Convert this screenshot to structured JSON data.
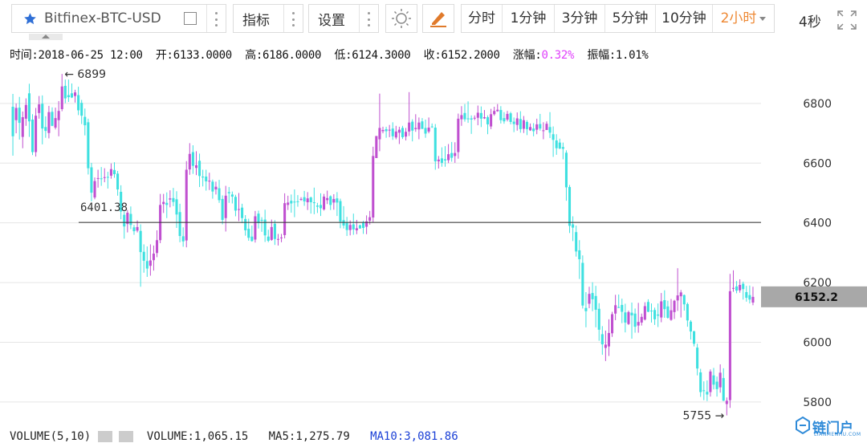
{
  "toolbar": {
    "symbol": "Bitfinex-BTC-USD",
    "indicators_label": "指标",
    "settings_label": "设置",
    "timeframes": [
      {
        "label": "分时",
        "active": false
      },
      {
        "label": "1分钟",
        "active": false
      },
      {
        "label": "3分钟",
        "active": false
      },
      {
        "label": "5分钟",
        "active": false
      },
      {
        "label": "10分钟",
        "active": false
      },
      {
        "label": "2小时",
        "active": true
      }
    ],
    "refresh_label": "4秒"
  },
  "info": {
    "time": "时间:2018-06-25 12:00",
    "open": "开:6133.0000",
    "high": "高:6186.0000",
    "low": "低:6124.3000",
    "close": "收:6152.2000",
    "change_label": "涨幅:",
    "change_value": "0.32%",
    "amplitude": "振幅:1.01%"
  },
  "chart_data": {
    "type": "candlestick",
    "y_range": [
      5770,
      6910
    ],
    "y_ticks": [
      "6800",
      "6600",
      "6400",
      "6200",
      "6000",
      "5800"
    ],
    "y_tick_values": [
      6800,
      6600,
      6400,
      6200,
      6000,
      5800
    ],
    "reference_line": {
      "value": 6401.38,
      "label": "6401.38"
    },
    "current_price": {
      "value": 6152.2,
      "label": "6152.2"
    },
    "max_marker": {
      "value": 6899,
      "label": "6899"
    },
    "min_marker": {
      "value": 5755,
      "label": "5755"
    },
    "colors": {
      "up": "#c050d0",
      "down": "#3ee0e0",
      "grid": "#e5e5e5",
      "axis_text": "#333333",
      "price_box": "#a8a8a8"
    },
    "candles": [
      [
        6789,
        6690,
        6832,
        6625
      ],
      [
        6744,
        6785,
        6800,
        6700
      ],
      [
        6786,
        6735,
        6822,
        6679
      ],
      [
        6688,
        6754,
        6773,
        6650
      ],
      [
        6749,
        6795,
        6817,
        6725
      ],
      [
        6834,
        6740,
        6866,
        6688
      ],
      [
        6746,
        6637,
        6764,
        6627
      ],
      [
        6637,
        6759,
        6785,
        6622
      ],
      [
        6768,
        6797,
        6825,
        6749
      ],
      [
        6799,
        6716,
        6827,
        6663
      ],
      [
        6721,
        6708,
        6757,
        6685
      ],
      [
        6701,
        6771,
        6792,
        6683
      ],
      [
        6772,
        6725,
        6787,
        6724
      ],
      [
        6719,
        6751,
        6786,
        6713
      ],
      [
        6744,
        6775,
        6808,
        6690
      ],
      [
        6781,
        6857,
        6899,
        6774
      ],
      [
        6859,
        6817,
        6880,
        6801
      ],
      [
        6828,
        6821,
        6880,
        6805
      ],
      [
        6834,
        6820,
        6867,
        6818
      ],
      [
        6825,
        6837,
        6846,
        6803
      ],
      [
        6828,
        6777,
        6856,
        6761
      ],
      [
        6802,
        6759,
        6812,
        6731
      ],
      [
        6755,
        6727,
        6783,
        6693
      ],
      [
        6737,
        6583,
        6749,
        6562
      ],
      [
        6586,
        6501,
        6601,
        6472
      ],
      [
        6485,
        6540,
        6552,
        6479
      ],
      [
        6550,
        6550,
        6578,
        6518
      ],
      [
        6549,
        6548,
        6587,
        6524
      ],
      [
        6552,
        6553,
        6583,
        6536
      ],
      [
        6554,
        6553,
        6571,
        6515
      ],
      [
        6558,
        6580,
        6599,
        6548
      ],
      [
        6577,
        6563,
        6603,
        6551
      ],
      [
        6565,
        6512,
        6574,
        6491
      ],
      [
        6504,
        6438,
        6526,
        6412
      ],
      [
        6427,
        6388,
        6439,
        6347
      ],
      [
        6396,
        6434,
        6443,
        6368
      ],
      [
        6430,
        6393,
        6455,
        6379
      ],
      [
        6385,
        6372,
        6393,
        6360
      ],
      [
        6374,
        6386,
        6408,
        6368
      ],
      [
        6373,
        6302,
        6395,
        6186
      ],
      [
        6303,
        6273,
        6328,
        6233
      ],
      [
        6272,
        6247,
        6321,
        6219
      ],
      [
        6256,
        6274,
        6328,
        6223
      ],
      [
        6275,
        6297,
        6324,
        6240
      ],
      [
        6299,
        6342,
        6375,
        6285
      ],
      [
        6342,
        6460,
        6497,
        6332
      ],
      [
        6463,
        6470,
        6497,
        6433
      ],
      [
        6467,
        6460,
        6502,
        6416
      ],
      [
        6478,
        6482,
        6509,
        6452
      ],
      [
        6483,
        6470,
        6517,
        6456
      ],
      [
        6479,
        6428,
        6506,
        6383
      ],
      [
        6436,
        6356,
        6464,
        6335
      ],
      [
        6355,
        6338,
        6385,
        6320
      ],
      [
        6341,
        6578,
        6607,
        6318
      ],
      [
        6579,
        6631,
        6667,
        6561
      ],
      [
        6637,
        6591,
        6660,
        6564
      ],
      [
        6584,
        6593,
        6640,
        6560
      ],
      [
        6608,
        6557,
        6632,
        6520
      ],
      [
        6555,
        6552,
        6578,
        6522
      ],
      [
        6555,
        6539,
        6578,
        6508
      ],
      [
        6541,
        6541,
        6568,
        6510
      ],
      [
        6538,
        6505,
        6545,
        6481
      ],
      [
        6512,
        6521,
        6538,
        6495
      ],
      [
        6516,
        6476,
        6544,
        6467
      ],
      [
        6480,
        6410,
        6492,
        6395
      ],
      [
        6416,
        6491,
        6524,
        6371
      ],
      [
        6503,
        6499,
        6520,
        6467
      ],
      [
        6495,
        6488,
        6505,
        6465
      ],
      [
        6487,
        6441,
        6494,
        6422
      ],
      [
        6444,
        6446,
        6500,
        6406
      ],
      [
        6451,
        6416,
        6464,
        6399
      ],
      [
        6413,
        6375,
        6426,
        6357
      ],
      [
        6380,
        6350,
        6414,
        6340
      ],
      [
        6354,
        6339,
        6391,
        6337
      ],
      [
        6344,
        6422,
        6440,
        6334
      ],
      [
        6431,
        6399,
        6441,
        6381
      ],
      [
        6410,
        6408,
        6419,
        6370
      ],
      [
        6411,
        6358,
        6444,
        6336
      ],
      [
        6354,
        6340,
        6377,
        6335
      ],
      [
        6343,
        6386,
        6411,
        6340
      ],
      [
        6397,
        6346,
        6409,
        6326
      ],
      [
        6344,
        6346,
        6363,
        6324
      ],
      [
        6351,
        6351,
        6363,
        6335
      ],
      [
        6359,
        6466,
        6499,
        6348
      ],
      [
        6460,
        6468,
        6491,
        6443
      ],
      [
        6474,
        6465,
        6495,
        6434
      ],
      [
        6471,
        6470,
        6512,
        6419
      ],
      [
        6472,
        6470,
        6493,
        6454
      ],
      [
        6478,
        6480,
        6486,
        6474
      ],
      [
        6486,
        6472,
        6507,
        6457
      ],
      [
        6469,
        6482,
        6503,
        6443
      ],
      [
        6485,
        6469,
        6488,
        6431
      ],
      [
        6469,
        6466,
        6518,
        6429
      ],
      [
        6458,
        6454,
        6467,
        6433
      ],
      [
        6460,
        6449,
        6499,
        6423
      ],
      [
        6445,
        6488,
        6497,
        6441
      ],
      [
        6476,
        6483,
        6508,
        6463
      ],
      [
        6489,
        6460,
        6492,
        6443
      ],
      [
        6468,
        6480,
        6496,
        6444
      ],
      [
        6482,
        6468,
        6503,
        6423
      ],
      [
        6473,
        6404,
        6481,
        6382
      ],
      [
        6409,
        6391,
        6456,
        6381
      ],
      [
        6400,
        6376,
        6420,
        6356
      ],
      [
        6376,
        6393,
        6408,
        6358
      ],
      [
        6395,
        6378,
        6431,
        6360
      ],
      [
        6375,
        6382,
        6410,
        6362
      ],
      [
        6392,
        6381,
        6394,
        6381
      ],
      [
        6401,
        6383,
        6407,
        6363
      ],
      [
        6387,
        6405,
        6425,
        6362
      ],
      [
        6407,
        6419,
        6440,
        6394
      ],
      [
        6418,
        6624,
        6655,
        6402
      ],
      [
        6617,
        6691,
        6684,
        6670
      ],
      [
        6680,
        6718,
        6833,
        6640
      ],
      [
        6707,
        6711,
        6722,
        6700
      ],
      [
        6714,
        6707,
        6722,
        6685
      ],
      [
        6710,
        6712,
        6728,
        6687
      ],
      [
        6716,
        6690,
        6737,
        6678
      ],
      [
        6686,
        6706,
        6725,
        6680
      ],
      [
        6702,
        6712,
        6722,
        6664
      ],
      [
        6718,
        6687,
        6725,
        6681
      ],
      [
        6689,
        6705,
        6718,
        6676
      ],
      [
        6706,
        6736,
        6838,
        6691
      ],
      [
        6739,
        6709,
        6747,
        6673
      ],
      [
        6714,
        6718,
        6764,
        6705
      ],
      [
        6713,
        6736,
        6753,
        6680
      ],
      [
        6740,
        6715,
        6751,
        6714
      ],
      [
        6718,
        6699,
        6746,
        6685
      ],
      [
        6706,
        6719,
        6753,
        6700
      ],
      [
        6723,
        6721,
        6733,
        6718
      ],
      [
        6719,
        6606,
        6731,
        6578
      ],
      [
        6606,
        6612,
        6624,
        6582
      ],
      [
        6616,
        6601,
        6653,
        6588
      ],
      [
        6613,
        6609,
        6657,
        6588
      ],
      [
        6610,
        6630,
        6664,
        6600
      ],
      [
        6634,
        6618,
        6671,
        6605
      ],
      [
        6624,
        6634,
        6670,
        6601
      ],
      [
        6637,
        6749,
        6766,
        6615
      ],
      [
        6747,
        6761,
        6791,
        6725
      ],
      [
        6768,
        6747,
        6798,
        6739
      ],
      [
        6750,
        6749,
        6807,
        6735
      ],
      [
        6750,
        6746,
        6760,
        6698
      ],
      [
        6752,
        6752,
        6760,
        6744
      ],
      [
        6752,
        6769,
        6793,
        6727
      ],
      [
        6768,
        6749,
        6790,
        6721
      ],
      [
        6750,
        6754,
        6778,
        6748
      ],
      [
        6754,
        6730,
        6760,
        6697
      ],
      [
        6723,
        6764,
        6782,
        6714
      ],
      [
        6764,
        6775,
        6789,
        6759
      ],
      [
        6774,
        6779,
        6798,
        6772
      ],
      [
        6778,
        6744,
        6791,
        6733
      ],
      [
        6751,
        6740,
        6771,
        6732
      ],
      [
        6746,
        6765,
        6775,
        6740
      ],
      [
        6767,
        6738,
        6772,
        6730
      ],
      [
        6739,
        6731,
        6753,
        6704
      ],
      [
        6728,
        6750,
        6770,
        6709
      ],
      [
        6748,
        6714,
        6774,
        6702
      ],
      [
        6715,
        6744,
        6758,
        6701
      ],
      [
        6738,
        6714,
        6744,
        6694
      ],
      [
        6710,
        6721,
        6733,
        6708
      ],
      [
        6716,
        6707,
        6734,
        6690
      ],
      [
        6712,
        6730,
        6749,
        6697
      ],
      [
        6731,
        6716,
        6765,
        6709
      ],
      [
        6709,
        6710,
        6737,
        6680
      ],
      [
        6711,
        6732,
        6740,
        6714
      ],
      [
        6721,
        6702,
        6771,
        6684
      ],
      [
        6697,
        6678,
        6723,
        6621
      ],
      [
        6676,
        6650,
        6697,
        6628
      ],
      [
        6669,
        6649,
        6682,
        6647
      ],
      [
        6654,
        6648,
        6669,
        6613
      ],
      [
        6635,
        6519,
        6643,
        6474
      ],
      [
        6520,
        6390,
        6527,
        6366
      ],
      [
        6395,
        6384,
        6422,
        6339
      ],
      [
        6369,
        6304,
        6391,
        6287
      ],
      [
        6308,
        6278,
        6342,
        6212
      ],
      [
        6266,
        6123,
        6291,
        6113
      ],
      [
        6115,
        6104,
        6168,
        6050
      ],
      [
        6129,
        6162,
        6186,
        6114
      ],
      [
        6165,
        6144,
        6201,
        6104
      ],
      [
        6155,
        6109,
        6189,
        6050
      ],
      [
        6112,
        6042,
        6131,
        6005
      ],
      [
        6027,
        5993,
        6054,
        5958
      ],
      [
        5981,
        5992,
        6039,
        5937
      ],
      [
        5986,
        6031,
        6077,
        5954
      ],
      [
        6030,
        6094,
        6102,
        6018
      ],
      [
        6096,
        6124,
        6159,
        6074
      ],
      [
        6118,
        6116,
        6160,
        6114
      ],
      [
        6125,
        6102,
        6146,
        6064
      ],
      [
        6100,
        6066,
        6129,
        6033
      ],
      [
        6061,
        6101,
        6106,
        6058
      ],
      [
        6099,
        6090,
        6133,
        6012
      ],
      [
        6096,
        6052,
        6113,
        6032
      ],
      [
        6056,
        6068,
        6132,
        6032
      ],
      [
        6066,
        6085,
        6096,
        6056
      ],
      [
        6076,
        6121,
        6134,
        6073
      ],
      [
        6135,
        6102,
        6144,
        6101
      ],
      [
        6106,
        6104,
        6130,
        6066
      ],
      [
        6108,
        6077,
        6116,
        6058
      ],
      [
        6093,
        6089,
        6130,
        6051
      ],
      [
        6083,
        6137,
        6165,
        6067
      ],
      [
        6141,
        6111,
        6174,
        6082
      ],
      [
        6120,
        6082,
        6139,
        6079
      ],
      [
        6075,
        6107,
        6145,
        6072
      ],
      [
        6101,
        6139,
        6142,
        6078
      ],
      [
        6140,
        6157,
        6248,
        6105
      ],
      [
        6154,
        6167,
        6175,
        6083
      ],
      [
        6158,
        6127,
        6160,
        6106
      ],
      [
        6128,
        6073,
        6133,
        6052
      ],
      [
        6069,
        6036,
        6074,
        6009
      ],
      [
        6037,
        5995,
        6038,
        5986
      ],
      [
        5982,
        5912,
        5995,
        5889
      ],
      [
        5899,
        5833,
        5911,
        5817
      ],
      [
        5839,
        5837,
        5869,
        5806
      ],
      [
        5834,
        5825,
        5872,
        5803
      ],
      [
        5833,
        5902,
        5909,
        5818
      ],
      [
        5889,
        5858,
        5914,
        5842
      ],
      [
        5868,
        5843,
        5885,
        5818
      ],
      [
        5849,
        5898,
        5926,
        5831
      ],
      [
        5880,
        5804,
        5913,
        5803
      ],
      [
        5793,
        5804,
        5815,
        5755
      ],
      [
        5806,
        6171,
        6229,
        5780
      ],
      [
        6180,
        6182,
        6241,
        6169
      ],
      [
        6187,
        6173,
        6205,
        6164
      ],
      [
        6174,
        6192,
        6211,
        6166
      ],
      [
        6196,
        6178,
        6203,
        6143
      ],
      [
        6168,
        6149,
        6189,
        6136
      ],
      [
        6158,
        6143,
        6190,
        6130
      ],
      [
        6133,
        6152,
        6186,
        6124
      ]
    ]
  },
  "volume": {
    "label": "VOLUME(5,10)",
    "volume_text": "VOLUME:1,065.15",
    "ma5": "MA5:1,275.79",
    "ma10": "MA10:3,081.86"
  },
  "watermark": {
    "text": "链门户",
    "sub": "LIANMENHU.COM"
  }
}
